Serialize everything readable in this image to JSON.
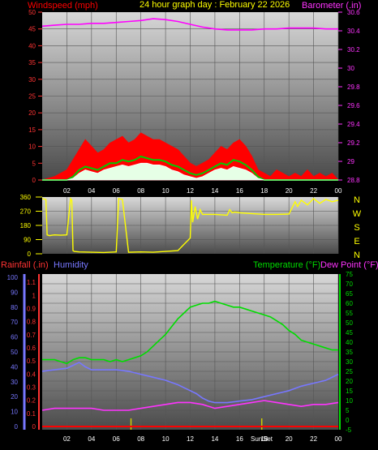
{
  "title": "24 hour graph day : February 22 2026",
  "colors": {
    "wind_gust": "#ff0000",
    "wind_avg": "#00cc00",
    "wind_low": "#e6ffe6",
    "barometer": "#ff00ff",
    "wind_dir": "#ffff00",
    "rainfall": "#ff0000",
    "humidity": "#7777ff",
    "temperature": "#00dd00",
    "dew_point": "#ff33ff",
    "sun": "#cccc00",
    "grid": "#555555"
  },
  "x_tick_labels": [
    "02",
    "04",
    "06",
    "08",
    "10",
    "12",
    "14",
    "16",
    "18",
    "20",
    "22",
    "00"
  ],
  "sun_labels": {
    "sunrise": "Sun",
    "sunset": "Set"
  },
  "direction_labels": [
    "N",
    "W",
    "S",
    "E",
    "N"
  ],
  "chart_data": [
    {
      "type": "line",
      "id": "wind_barometer",
      "title": "24 hour graph day : February 22 2026",
      "left_axis_label": "Windspeed (mph)",
      "right_axis_label": "Barometer (.in)",
      "left_ticks": [
        "0",
        "5",
        "10",
        "15",
        "20",
        "25",
        "30",
        "35",
        "40",
        "45",
        "50"
      ],
      "right_ticks": [
        "28.8",
        "29",
        "29.2",
        "29.4",
        "29.6",
        "29.8",
        "30",
        "30.2",
        "30.4",
        "30.6"
      ],
      "ylim_left": [
        0,
        50
      ],
      "ylim_right": [
        28.8,
        30.6
      ],
      "xlim_hours": [
        0,
        24
      ],
      "series": [
        {
          "name": "Windspeed (mph)",
          "axis": "left",
          "kind": "gust",
          "x": [
            0,
            1,
            1.5,
            2,
            2.5,
            3,
            3.5,
            4,
            4.5,
            5,
            5.5,
            6,
            6.5,
            7,
            7.5,
            8,
            8.5,
            9,
            9.5,
            10,
            10.5,
            11,
            11.5,
            12,
            12.5,
            13,
            13.5,
            14,
            14.5,
            15,
            15.5,
            16,
            16.5,
            17,
            17.5,
            18,
            18.5,
            19,
            19.5,
            20,
            20.5,
            21,
            21.5,
            22,
            22.5,
            23,
            23.5,
            24
          ],
          "y": [
            0,
            1,
            2,
            3,
            6,
            9,
            12,
            10,
            8,
            9,
            11,
            12,
            13,
            11,
            12,
            14,
            13,
            12,
            12,
            11,
            10,
            9,
            7,
            5,
            4,
            5,
            6,
            8,
            10,
            9,
            11,
            12,
            10,
            7,
            3,
            2,
            1,
            3,
            2,
            1,
            2,
            1,
            3,
            1,
            2,
            1,
            2,
            0
          ]
        },
        {
          "name": "Average",
          "axis": "left",
          "kind": "avg",
          "x": [
            0,
            1,
            1.5,
            2,
            2.5,
            3,
            3.5,
            4,
            4.5,
            5,
            5.5,
            6,
            6.5,
            7,
            7.5,
            8,
            8.5,
            9,
            9.5,
            10,
            10.5,
            11,
            11.5,
            12,
            12.5,
            13,
            13.5,
            14,
            14.5,
            15,
            15.5,
            16,
            16.5,
            17,
            17.5,
            18,
            24
          ],
          "y": [
            0,
            0,
            0,
            0,
            1,
            3,
            4,
            3.5,
            3,
            4,
            5,
            5,
            6,
            5.5,
            6,
            7,
            6.5,
            6,
            6,
            5.5,
            4.5,
            4,
            3,
            2,
            1.5,
            2,
            3,
            4,
            5,
            4.5,
            6,
            5.5,
            4.5,
            3,
            1,
            0,
            0
          ]
        },
        {
          "name": "Low",
          "axis": "left",
          "kind": "low",
          "x": [
            0,
            2,
            2.5,
            3,
            3.5,
            4,
            4.5,
            5,
            5.5,
            6,
            6.5,
            7,
            7.5,
            8,
            8.5,
            9,
            9.5,
            10,
            10.5,
            11,
            11.5,
            12,
            12.5,
            13,
            13.5,
            14,
            14.5,
            15,
            15.5,
            16,
            16.5,
            17,
            17.5,
            18,
            24
          ],
          "y": [
            0,
            0,
            0.5,
            2,
            3,
            2.5,
            2,
            3,
            3.5,
            4,
            4.5,
            4,
            4.5,
            5,
            5,
            4.5,
            4.5,
            4,
            3,
            2.5,
            1.5,
            1,
            0.5,
            1,
            2,
            3,
            3.5,
            3,
            4,
            3.5,
            3,
            2,
            0.5,
            0,
            0
          ]
        },
        {
          "name": "Barometer (.in)",
          "axis": "right",
          "x": [
            0,
            1,
            2,
            3,
            4,
            5,
            6,
            7,
            8,
            9,
            10,
            11,
            12,
            13,
            14,
            15,
            16,
            17,
            18,
            19,
            20,
            21,
            22,
            23,
            24
          ],
          "y": [
            30.45,
            30.46,
            30.47,
            30.47,
            30.48,
            30.48,
            30.49,
            30.5,
            30.51,
            30.53,
            30.52,
            30.5,
            30.47,
            30.44,
            30.42,
            30.41,
            30.41,
            30.41,
            30.42,
            30.42,
            30.43,
            30.43,
            30.43,
            30.42,
            30.42
          ]
        }
      ]
    },
    {
      "type": "line",
      "id": "wind_direction",
      "left_ticks": [
        "0",
        "90",
        "180",
        "270",
        "360"
      ],
      "ylim": [
        0,
        360
      ],
      "xlim_hours": [
        0,
        24
      ],
      "series": [
        {
          "name": "Wind direction",
          "x": [
            0,
            0.3,
            0.4,
            0.6,
            0.8,
            1.0,
            1.5,
            2.0,
            2.3,
            2.4,
            2.5,
            2.6,
            3.0,
            4.0,
            5.0,
            5.5,
            6.0,
            6.2,
            6.5,
            7.0,
            8.0,
            9.0,
            10.0,
            11.0,
            11.5,
            12.0,
            12.1,
            12.2,
            12.4,
            12.6,
            12.8,
            13.0,
            14.0,
            15.0,
            15.2,
            15.4,
            15.6,
            16.0,
            17.0,
            18.0,
            19.0,
            20.0,
            20.5,
            20.7,
            21.0,
            21.5,
            22.0,
            22.5,
            23.0,
            23.5,
            24.0
          ],
          "y": [
            350,
            345,
            120,
            115,
            118,
            120,
            118,
            120,
            350,
            340,
            20,
            15,
            12,
            10,
            8,
            10,
            12,
            350,
            345,
            10,
            12,
            10,
            15,
            20,
            60,
            100,
            340,
            200,
            300,
            220,
            280,
            250,
            250,
            245,
            280,
            260,
            265,
            260,
            255,
            250,
            250,
            252,
            330,
            300,
            340,
            310,
            350,
            320,
            345,
            330,
            340
          ]
        }
      ]
    },
    {
      "type": "line",
      "id": "temp_humidity_rain",
      "left_axis_label_1": "Rainfall (.in)",
      "left_axis_label_2": "Humidity",
      "right_axis_label_1": "Temperature (°F)",
      "right_axis_label_2": "Dew Point (°F)",
      "humidity_ticks": [
        "0",
        "10",
        "20",
        "30",
        "40",
        "50",
        "60",
        "70",
        "80",
        "90",
        "100"
      ],
      "rain_ticks": [
        "0",
        "0.1",
        "0.2",
        "0.3",
        "0.4",
        "0.5",
        "0.6",
        "0.7",
        "0.8",
        "0.9",
        "1",
        "1.1"
      ],
      "temp_ticks": [
        "-5",
        "0",
        "5",
        "10",
        "15",
        "20",
        "25",
        "30",
        "35",
        "40",
        "45",
        "50",
        "55",
        "60",
        "65",
        "70",
        "75"
      ],
      "ylim_humidity": [
        0,
        100
      ],
      "ylim_rain": [
        0,
        1.15
      ],
      "ylim_temp": [
        -5,
        75
      ],
      "xlim_hours": [
        0,
        24
      ],
      "series": [
        {
          "name": "Temperature (°F)",
          "axis": "temp",
          "x": [
            0,
            0.5,
            1,
            1.5,
            2,
            2.5,
            3,
            3.5,
            4,
            4.5,
            5,
            5.5,
            6,
            6.5,
            7,
            7.5,
            8,
            8.5,
            9,
            9.5,
            10,
            10.5,
            11,
            11.5,
            12,
            12.5,
            13,
            13.5,
            14,
            14.5,
            15,
            15.5,
            16,
            16.5,
            17,
            17.5,
            18,
            18.5,
            19,
            19.5,
            20,
            20.5,
            21,
            21.5,
            22,
            22.5,
            23,
            23.5,
            24
          ],
          "y": [
            31,
            31,
            31,
            30,
            29,
            31,
            32,
            32,
            31,
            31,
            31,
            30,
            31,
            30,
            31,
            32,
            33,
            35,
            38,
            41,
            44,
            48,
            52,
            55,
            58,
            59,
            60,
            60,
            61,
            60,
            59,
            58,
            58,
            57,
            56,
            55,
            54,
            53,
            51,
            49,
            46,
            44,
            41,
            40,
            39,
            38,
            37,
            36,
            36
          ]
        },
        {
          "name": "Dew Point (°F)",
          "axis": "temp",
          "x": [
            0,
            1,
            2,
            3,
            4,
            5,
            6,
            7,
            8,
            9,
            10,
            11,
            12,
            13,
            14,
            15,
            16,
            17,
            18,
            19,
            20,
            21,
            22,
            23,
            24
          ],
          "y": [
            5,
            6,
            6,
            6,
            6,
            5,
            5,
            5,
            6,
            7,
            8,
            9,
            9,
            8,
            6,
            7,
            8,
            9,
            10,
            9,
            8,
            7,
            8,
            8,
            9
          ]
        },
        {
          "name": "Humidity",
          "axis": "humidity",
          "x": [
            0,
            1,
            2,
            2.5,
            3,
            3.5,
            4,
            5,
            6,
            7,
            8,
            9,
            10,
            11,
            12,
            12.5,
            13,
            13.5,
            14,
            15,
            16,
            17,
            18,
            19,
            20,
            21,
            22,
            23,
            24
          ],
          "y": [
            37,
            38,
            39,
            41,
            43,
            40,
            38,
            38,
            38,
            37,
            35,
            33,
            31,
            28,
            24,
            22,
            19,
            17,
            16,
            16,
            17,
            18,
            20,
            22,
            24,
            27,
            29,
            31,
            35
          ]
        },
        {
          "name": "Rainfall (.in)",
          "axis": "rain",
          "x": [
            0,
            24
          ],
          "y": [
            0,
            0
          ]
        }
      ],
      "sun_marks_hours": [
        7.2,
        17.8
      ]
    }
  ]
}
